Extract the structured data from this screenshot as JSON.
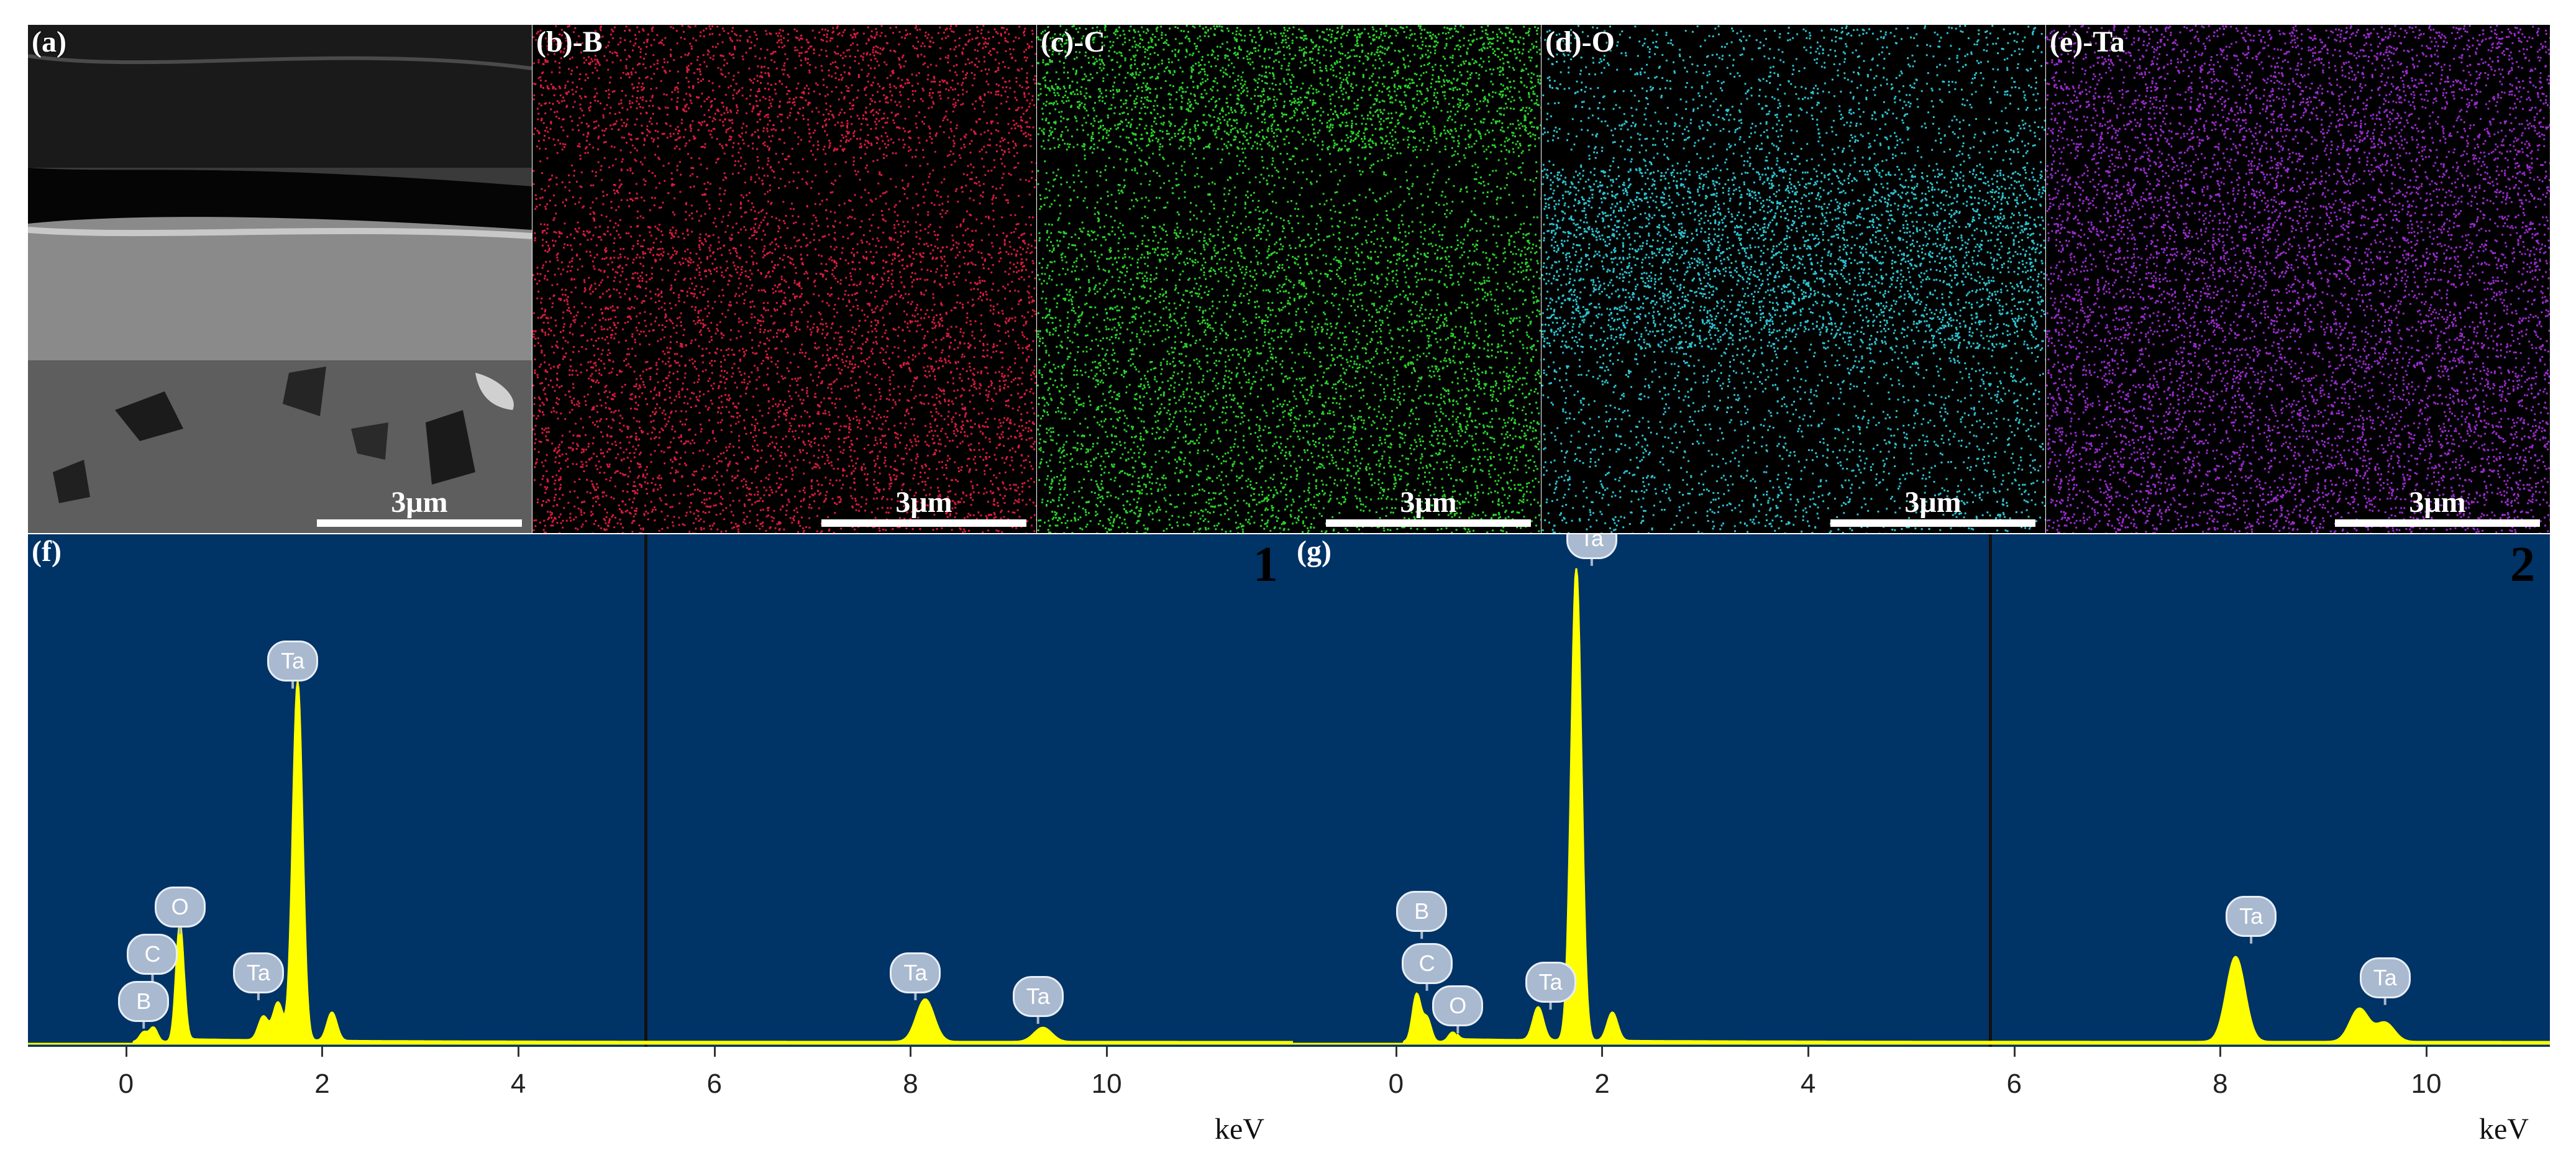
{
  "maps": [
    {
      "label": "(a)",
      "scale": "3μm",
      "kind": "sem",
      "color": "#bdbdbd"
    },
    {
      "label": "(b)-B",
      "scale": "3μm",
      "kind": "eds",
      "color": "#d81b3c"
    },
    {
      "label": "(c)-C",
      "scale": "3μm",
      "kind": "eds",
      "color": "#2ad12a"
    },
    {
      "label": "(d)-O",
      "scale": "3μm",
      "kind": "eds",
      "color": "#2bc3cf"
    },
    {
      "label": "(e)-Ta",
      "scale": "3μm",
      "kind": "eds",
      "color": "#9b2ad0"
    }
  ],
  "spectra": [
    {
      "label": "(f)",
      "number": "1",
      "xlabel": "keV",
      "xlim": [
        -1,
        12
      ],
      "ticks": [
        0,
        2,
        4,
        6,
        8,
        10
      ]
    },
    {
      "label": "(g)",
      "number": "2",
      "xlabel": "keV",
      "xlim": [
        -1,
        12
      ],
      "ticks": [
        0,
        2,
        4,
        6,
        8,
        10
      ]
    }
  ],
  "chart_data": [
    {
      "type": "line",
      "title": "",
      "xlabel": "keV",
      "ylabel": "",
      "xlim": [
        -1,
        11.9
      ],
      "line_color": "#ffff00",
      "background": "#003366",
      "peaks": [
        {
          "element": "B",
          "x": 0.18,
          "height": 0.02
        },
        {
          "element": "C",
          "x": 0.28,
          "height": 0.03
        },
        {
          "element": "O",
          "x": 0.55,
          "height": 0.25
        },
        {
          "element": "Ta",
          "x": 1.4,
          "height": 0.05
        },
        {
          "element": "Ta",
          "x": 1.55,
          "height": 0.08
        },
        {
          "element": "Ta",
          "x": 1.75,
          "height": 0.76
        },
        {
          "element": "Ta",
          "x": 2.1,
          "height": 0.06
        },
        {
          "element": "Ta",
          "x": 8.15,
          "height": 0.09
        },
        {
          "element": "Ta",
          "x": 9.35,
          "height": 0.03
        }
      ],
      "labels": [
        {
          "text": "B",
          "x": 0.18,
          "y": 0.09
        },
        {
          "text": "C",
          "x": 0.27,
          "y": 0.19
        },
        {
          "text": "O",
          "x": 0.55,
          "y": 0.29
        },
        {
          "text": "Ta",
          "x": 1.35,
          "y": 0.15
        },
        {
          "text": "Ta",
          "x": 1.7,
          "y": 0.81
        },
        {
          "text": "Ta",
          "x": 8.05,
          "y": 0.15
        },
        {
          "text": "Ta",
          "x": 9.3,
          "y": 0.1
        }
      ]
    },
    {
      "type": "line",
      "title": "",
      "xlabel": "keV",
      "ylabel": "",
      "xlim": [
        -1,
        11.2
      ],
      "line_color": "#ffff00",
      "background": "#003366",
      "peaks": [
        {
          "element": "B",
          "x": 0.2,
          "height": 0.1
        },
        {
          "element": "C",
          "x": 0.3,
          "height": 0.05
        },
        {
          "element": "O",
          "x": 0.55,
          "height": 0.02
        },
        {
          "element": "Ta",
          "x": 1.38,
          "height": 0.07
        },
        {
          "element": "Ta",
          "x": 1.75,
          "height": 1.0
        },
        {
          "element": "Ta",
          "x": 2.1,
          "height": 0.06
        },
        {
          "element": "Ta",
          "x": 8.15,
          "height": 0.18
        },
        {
          "element": "Ta",
          "x": 9.35,
          "height": 0.07
        },
        {
          "element": "Ta",
          "x": 9.6,
          "height": 0.04
        }
      ],
      "labels": [
        {
          "text": "B",
          "x": 0.25,
          "y": 0.28
        },
        {
          "text": "C",
          "x": 0.3,
          "y": 0.17
        },
        {
          "text": "O",
          "x": 0.6,
          "y": 0.08
        },
        {
          "text": "Ta",
          "x": 1.5,
          "y": 0.13
        },
        {
          "text": "Ta",
          "x": 1.9,
          "y": 1.07
        },
        {
          "text": "Ta",
          "x": 8.3,
          "y": 0.27
        },
        {
          "text": "Ta",
          "x": 9.6,
          "y": 0.14
        }
      ]
    }
  ]
}
